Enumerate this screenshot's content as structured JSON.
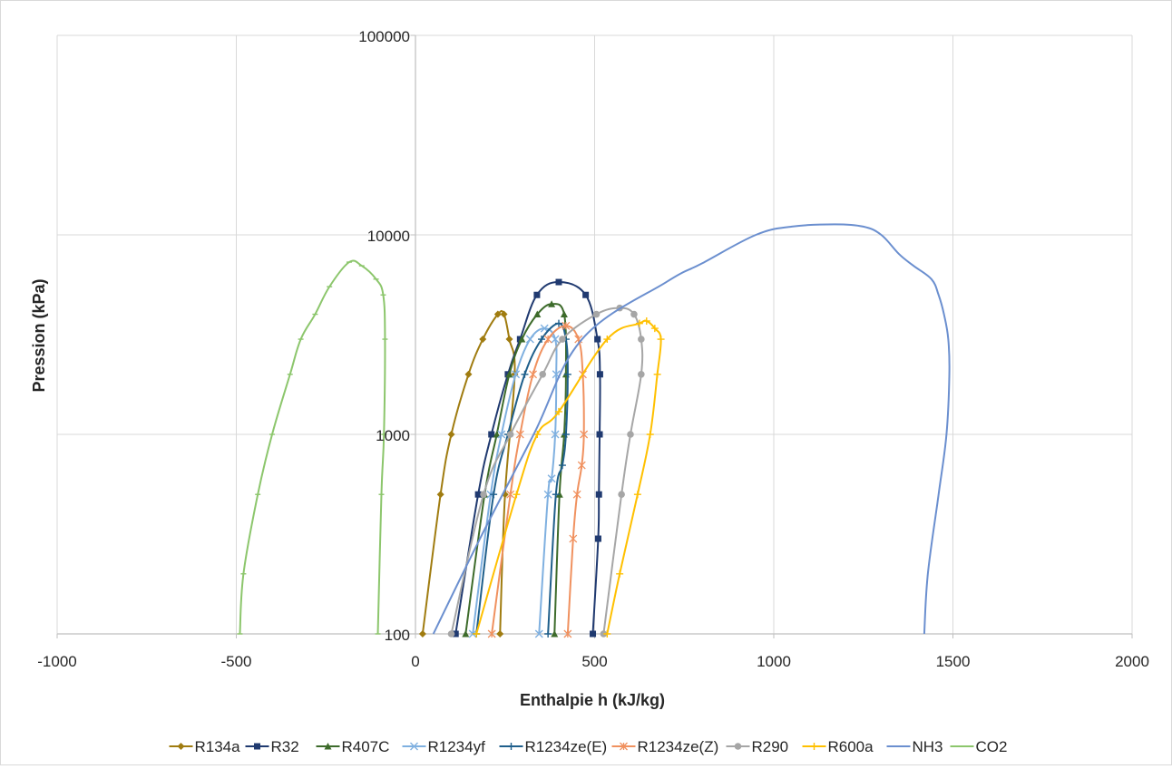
{
  "chart_data": {
    "type": "line",
    "xlabel": "Enthalpie h (kJ/kg)",
    "ylabel": "Pression (kPa)",
    "xlim": [
      -1000,
      2000
    ],
    "ylim": [
      100,
      100000
    ],
    "yscale": "log",
    "x_ticks": [
      -1000,
      -500,
      0,
      500,
      1000,
      1500,
      2000
    ],
    "x_tick_labels": [
      "-1000",
      "-500",
      "0",
      "500",
      "1000",
      "1500",
      "2000"
    ],
    "y_ticks": [
      100,
      1000,
      10000,
      100000
    ],
    "y_tick_labels": [
      "100",
      "1000",
      "10000",
      "100000"
    ],
    "grid": true,
    "legend_position": "bottom",
    "series": [
      {
        "name": "R134a",
        "color": "#a07c10",
        "marker": "diamond",
        "x": [
          20,
          70,
          100,
          148,
          188,
          230,
          247,
          262,
          277,
          250,
          236
        ],
        "y": [
          100,
          500,
          1000,
          2000,
          3000,
          4000,
          4000,
          3000,
          2000,
          500,
          100
        ]
      },
      {
        "name": "R32",
        "color": "#203a70",
        "marker": "square",
        "x": [
          112,
          175,
          212,
          258,
          292,
          339,
          400,
          475,
          508,
          515,
          514,
          512,
          510,
          495
        ],
        "y": [
          100,
          500,
          1000,
          2000,
          3000,
          5000,
          5800,
          5000,
          3000,
          2000,
          1000,
          500,
          300,
          100
        ]
      },
      {
        "name": "R407C",
        "color": "#3d6b2b",
        "marker": "triangle",
        "x": [
          140,
          193,
          227,
          262,
          297,
          340,
          380,
          415,
          420,
          415,
          402,
          388
        ],
        "y": [
          100,
          500,
          1000,
          2000,
          3000,
          4000,
          4500,
          4000,
          2000,
          1000,
          500,
          100
        ]
      },
      {
        "name": "R1234yf",
        "color": "#7fb0e0",
        "marker": "x",
        "x": [
          160,
          210,
          240,
          280,
          320,
          360,
          390,
          393,
          390,
          380,
          370,
          345
        ],
        "y": [
          100,
          500,
          1000,
          2000,
          3000,
          3400,
          3000,
          2000,
          1000,
          600,
          500,
          100
        ]
      },
      {
        "name": "R1234ze(E)",
        "color": "#1f5f8b",
        "marker": "plus",
        "x": [
          170,
          218,
          258,
          305,
          352,
          400,
          420,
          425,
          420,
          410,
          392,
          370
        ],
        "y": [
          100,
          500,
          1000,
          2000,
          3000,
          3600,
          3000,
          2000,
          1000,
          700,
          500,
          100
        ]
      },
      {
        "name": "R1234ze(Z)",
        "color": "#f0915f",
        "marker": "asterisk",
        "x": [
          213,
          265,
          292,
          328,
          370,
          420,
          455,
          467,
          470,
          464,
          451,
          440,
          425
        ],
        "y": [
          100,
          500,
          1000,
          2000,
          3000,
          3500,
          3000,
          2000,
          1000,
          700,
          500,
          300,
          100
        ]
      },
      {
        "name": "R290",
        "color": "#a6a6a6",
        "marker": "circle",
        "x": [
          100,
          190,
          265,
          355,
          410,
          505,
          570,
          610,
          630,
          630,
          600,
          575,
          525
        ],
        "y": [
          100,
          500,
          1000,
          2000,
          3000,
          4000,
          4300,
          4000,
          3000,
          2000,
          1000,
          500,
          100
        ]
      },
      {
        "name": "R600a",
        "color": "#ffc000",
        "marker": "plus",
        "x": [
          170,
          282,
          340,
          400,
          535,
          625,
          645,
          668,
          685,
          675,
          655,
          620,
          570,
          535
        ],
        "y": [
          100,
          500,
          1000,
          1300,
          3000,
          3600,
          3700,
          3400,
          3000,
          2000,
          1000,
          500,
          200,
          100
        ]
      },
      {
        "name": "NH3",
        "color": "#6b8fcf",
        "marker": "none",
        "x": [
          50,
          180,
          330,
          465,
          700,
          800,
          950,
          1050,
          1170,
          1250,
          1300,
          1350,
          1390,
          1440,
          1460,
          1475,
          1487,
          1490,
          1482,
          1460,
          1430,
          1420
        ],
        "y": [
          100,
          300,
          1000,
          3000,
          5800,
          7200,
          10000,
          11000,
          11300,
          11000,
          10000,
          8000,
          7000,
          6000,
          5000,
          4000,
          3000,
          2000,
          1000,
          500,
          200,
          100
        ]
      },
      {
        "name": "CO2",
        "color": "#8cc66c",
        "marker": "tick",
        "x": [
          -490,
          -480,
          -440,
          -400,
          -350,
          -320,
          -280,
          -240,
          -185,
          -150,
          -110,
          -90,
          -85,
          -88,
          -95,
          -105
        ],
        "y": [
          100,
          200,
          500,
          1000,
          2000,
          3000,
          4000,
          5500,
          7300,
          7000,
          6000,
          5000,
          3000,
          1000,
          500,
          100
        ]
      }
    ]
  }
}
